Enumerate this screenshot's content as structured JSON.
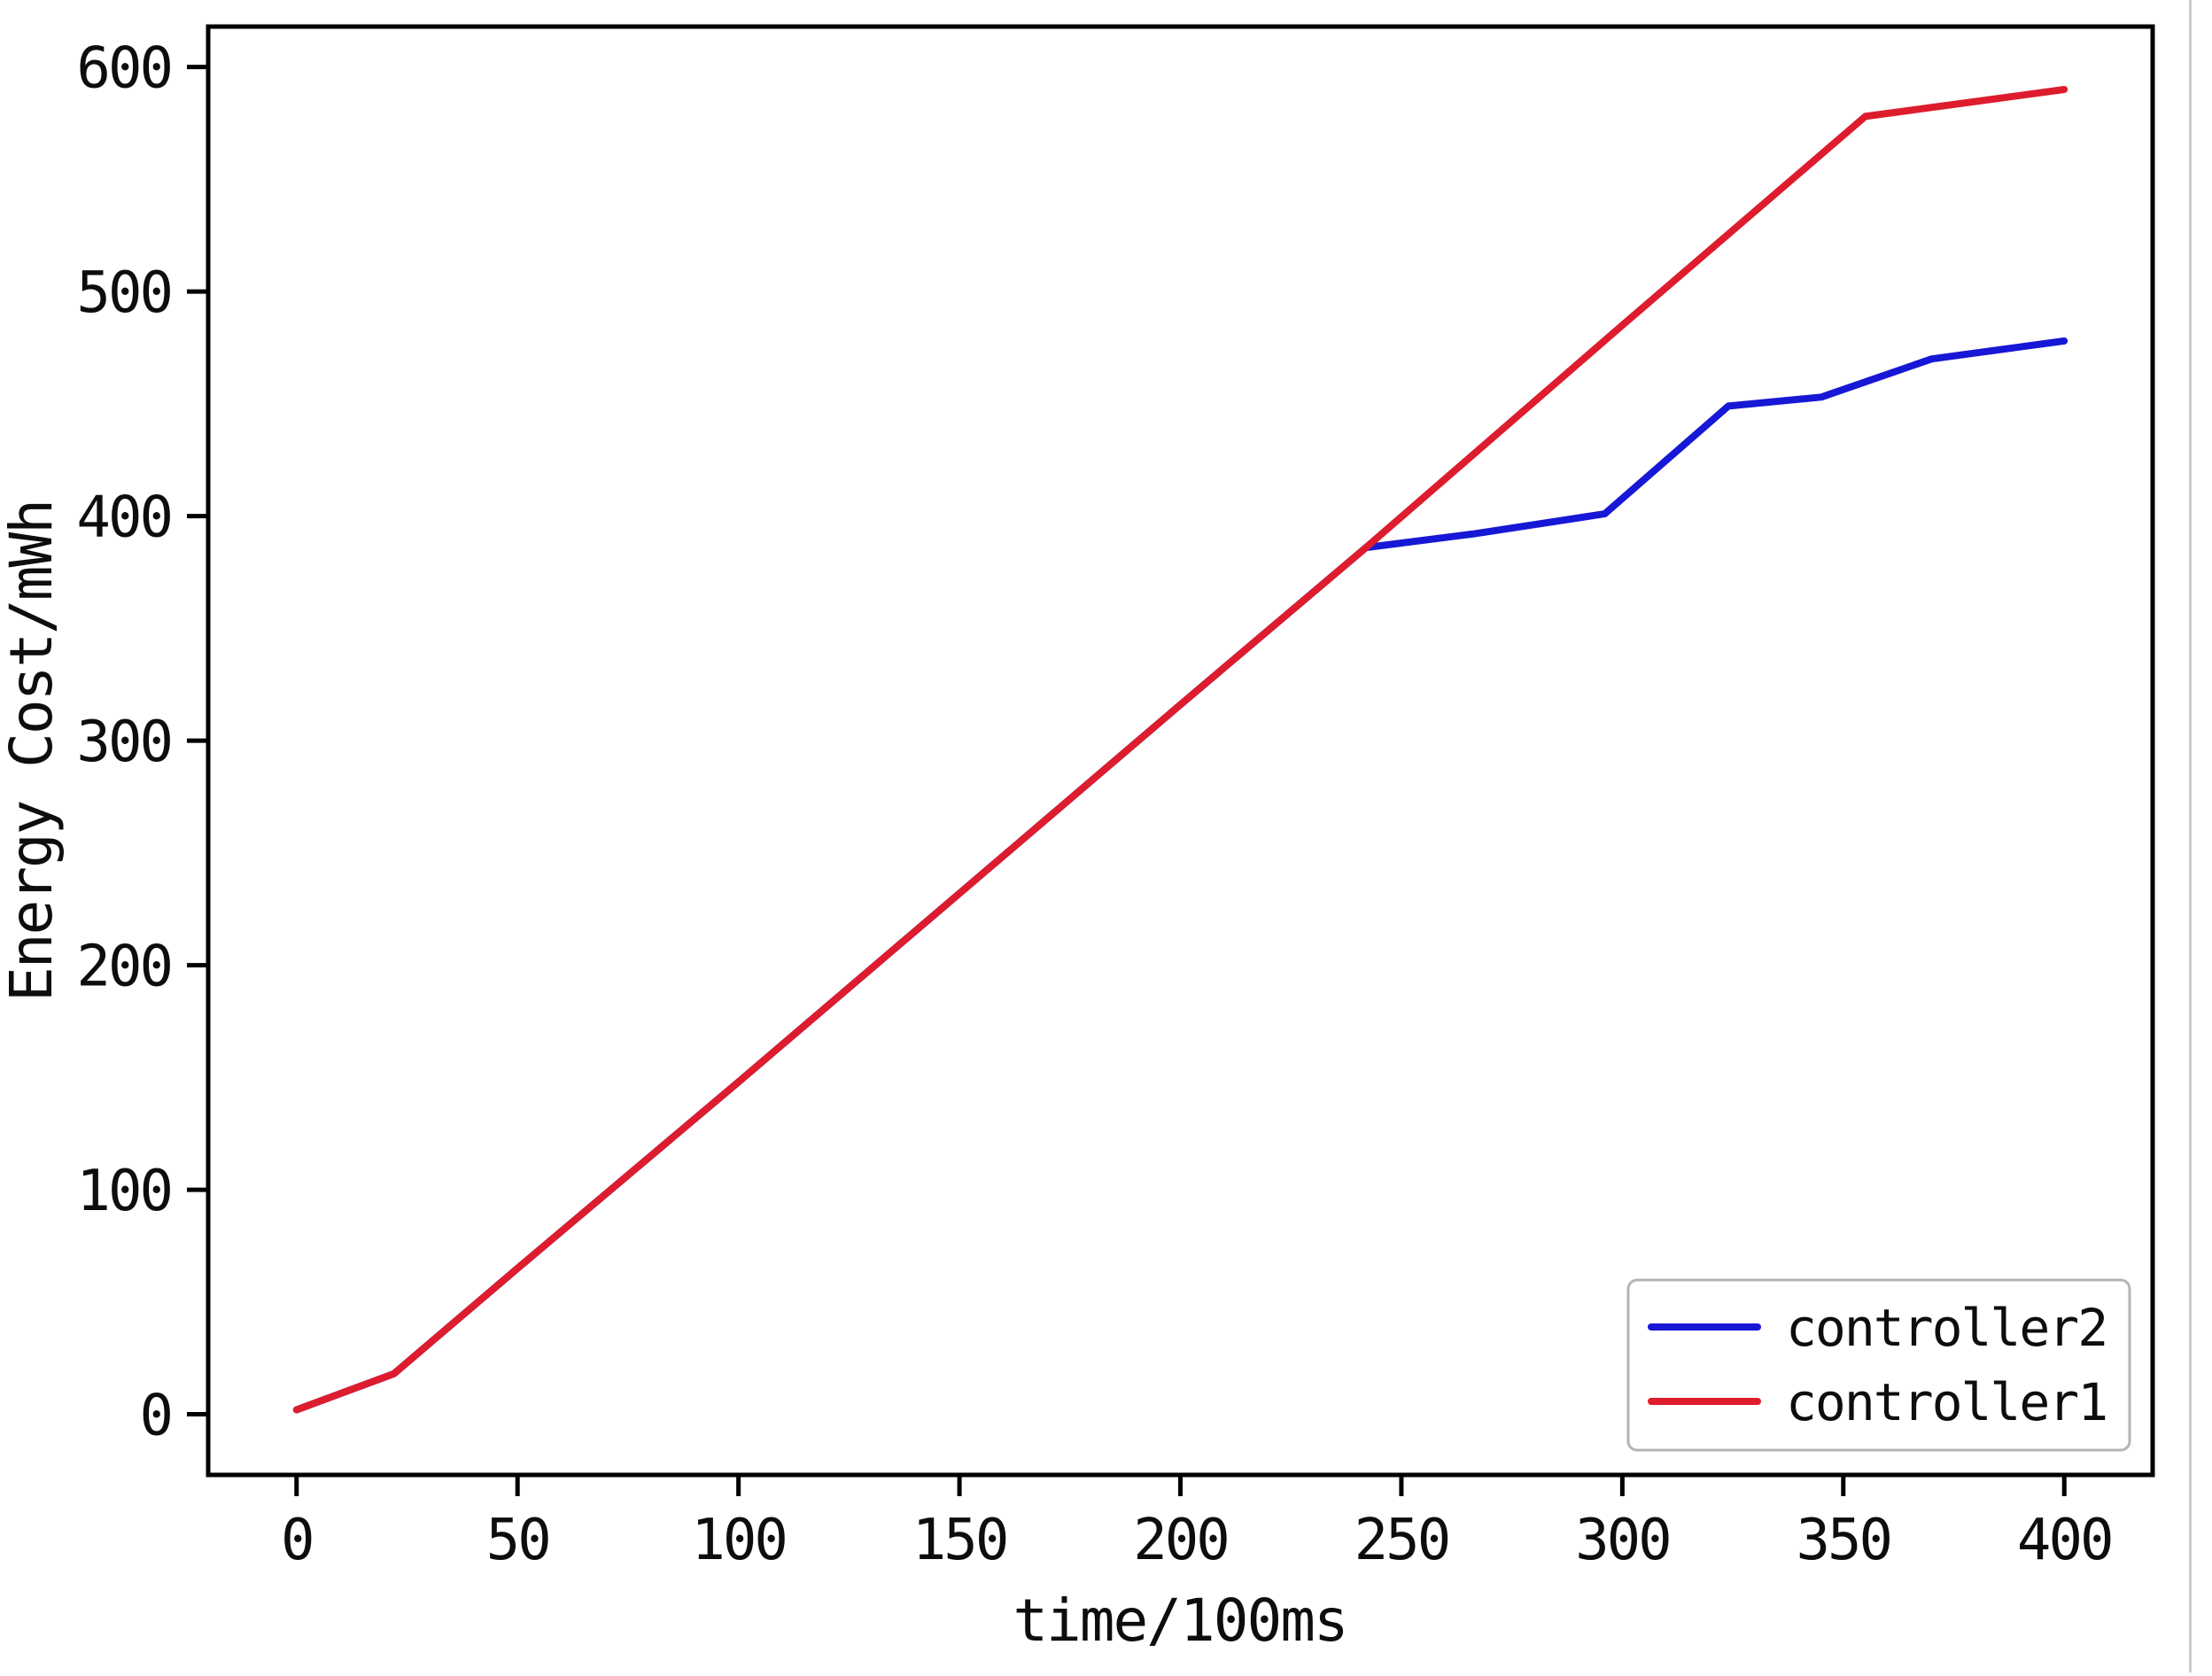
{
  "chart_data": {
    "type": "line",
    "title": "",
    "xlabel": "time/100ms",
    "ylabel": "Energy Cost/mWh",
    "xlim": [
      -20,
      420
    ],
    "ylim": [
      -27,
      618
    ],
    "x_ticks": [
      0,
      50,
      100,
      150,
      200,
      250,
      300,
      350,
      400
    ],
    "y_ticks": [
      0,
      100,
      200,
      300,
      400,
      500,
      600
    ],
    "grid": false,
    "legend_position": "lower right",
    "axis_color": "#000000",
    "background_color": "#ffffff",
    "series": [
      {
        "name": "controller2",
        "color": "#1717d6",
        "points": [
          [
            0,
            2
          ],
          [
            22,
            18
          ],
          [
            50,
            65
          ],
          [
            100,
            148
          ],
          [
            150,
            232
          ],
          [
            200,
            316
          ],
          [
            242,
            386
          ],
          [
            266,
            392
          ],
          [
            296,
            401
          ],
          [
            324,
            449
          ],
          [
            345,
            453
          ],
          [
            370,
            470
          ],
          [
            400,
            478
          ]
        ]
      },
      {
        "name": "controller1",
        "color": "#dd1c2e",
        "points": [
          [
            0,
            2
          ],
          [
            22,
            18
          ],
          [
            50,
            65
          ],
          [
            100,
            148
          ],
          [
            150,
            232
          ],
          [
            200,
            316
          ],
          [
            242,
            386
          ],
          [
            300,
            485
          ],
          [
            355,
            578
          ],
          [
            400,
            590
          ]
        ]
      }
    ]
  }
}
